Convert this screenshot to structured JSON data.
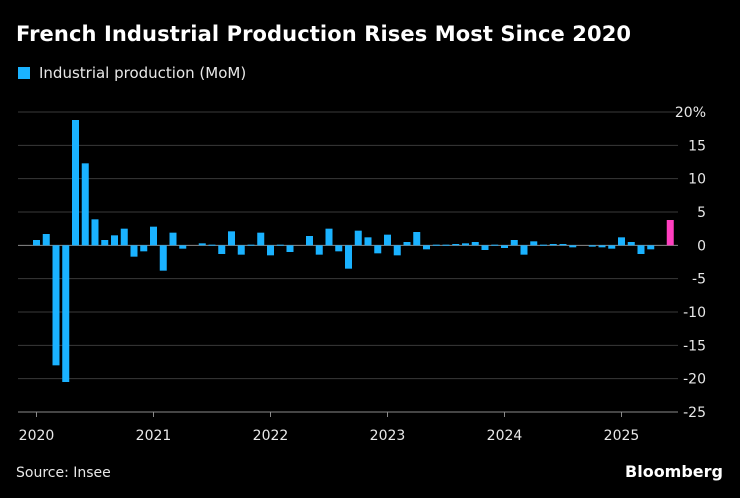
{
  "colors": {
    "background": "#000000",
    "series": "#1ab2ff",
    "highlight": "#ff3fbf",
    "grid": "#3a3a3a",
    "text": "#e8e8e8"
  },
  "source": "Source: Insee",
  "brand": "Bloomberg",
  "chart_data": {
    "type": "bar",
    "title": "French Industrial Production Rises Most Since 2020",
    "legend": {
      "entries": [
        "Industrial production (MoM)"
      ],
      "placement": "top-left"
    },
    "x_axis": {
      "tick_labels": [
        "2020",
        "2021",
        "2022",
        "2023",
        "2024",
        "2025"
      ]
    },
    "y_axis": {
      "position": "right",
      "range": [
        -25,
        20
      ],
      "ticks": [
        {
          "value": 20,
          "label": "20%"
        },
        {
          "value": 15,
          "label": "15"
        },
        {
          "value": 10,
          "label": "10"
        },
        {
          "value": 5,
          "label": "5"
        },
        {
          "value": 0,
          "label": "0"
        },
        {
          "value": -5,
          "label": "-5"
        },
        {
          "value": -10,
          "label": "-10"
        },
        {
          "value": -15,
          "label": "-15"
        },
        {
          "value": -20,
          "label": "-20"
        },
        {
          "value": -25,
          "label": "-25"
        }
      ]
    },
    "grid": true,
    "highlighted_last_bar": true,
    "series": [
      {
        "name": "Industrial production (MoM)",
        "x": [
          "2020-01",
          "2020-02",
          "2020-03",
          "2020-04",
          "2020-05",
          "2020-06",
          "2020-07",
          "2020-08",
          "2020-09",
          "2020-10",
          "2020-11",
          "2020-12",
          "2021-01",
          "2021-02",
          "2021-03",
          "2021-04",
          "2021-05",
          "2021-06",
          "2021-07",
          "2021-08",
          "2021-09",
          "2021-10",
          "2021-11",
          "2021-12",
          "2022-01",
          "2022-02",
          "2022-03",
          "2022-04",
          "2022-05",
          "2022-06",
          "2022-07",
          "2022-08",
          "2022-09",
          "2022-10",
          "2022-11",
          "2022-12",
          "2023-01",
          "2023-02",
          "2023-03",
          "2023-04",
          "2023-05",
          "2023-06",
          "2023-07",
          "2023-08",
          "2023-09",
          "2023-10",
          "2023-11",
          "2023-12",
          "2024-01",
          "2024-02",
          "2024-03",
          "2024-04",
          "2024-05",
          "2024-06",
          "2024-07",
          "2024-08",
          "2024-09",
          "2024-10",
          "2024-11",
          "2024-12",
          "2025-01",
          "2025-02",
          "2025-03",
          "2025-04",
          "2025-05",
          "2025-06"
        ],
        "values": [
          0.8,
          1.7,
          -18.0,
          -20.5,
          18.8,
          12.3,
          3.9,
          0.8,
          1.5,
          2.5,
          -1.7,
          -0.9,
          2.8,
          -3.8,
          1.9,
          -0.5,
          0.0,
          0.3,
          0.1,
          -1.3,
          2.1,
          -1.4,
          0.1,
          1.9,
          -1.5,
          0.1,
          -1.0,
          0.0,
          1.4,
          -1.4,
          2.5,
          -0.9,
          -3.5,
          2.2,
          1.2,
          -1.2,
          1.6,
          -1.5,
          0.5,
          2.0,
          -0.6,
          0.1,
          0.1,
          0.2,
          0.3,
          0.5,
          -0.7,
          0.1,
          -0.4,
          0.8,
          -1.4,
          0.6,
          0.1,
          0.2,
          0.2,
          -0.3,
          0.0,
          -0.2,
          -0.3,
          -0.5,
          1.2,
          0.5,
          -1.3,
          -0.6,
          0.0,
          3.8
        ]
      }
    ]
  }
}
